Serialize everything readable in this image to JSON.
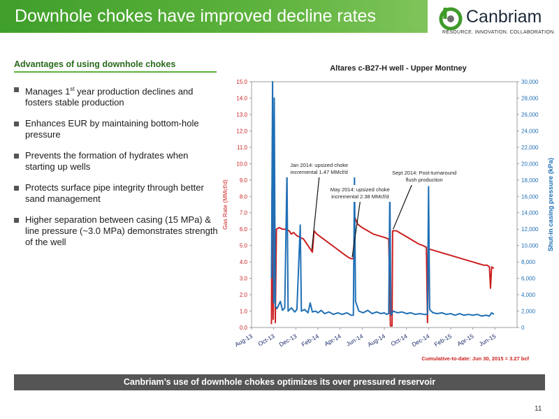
{
  "slide": {
    "title": "Downhole chokes have improved decline rates",
    "logo_name": "Canbriam",
    "logo_tagline": "RESOURCE. INNOVATION. COLLABORATION.",
    "section_heading": "Advantages of using downhole chokes",
    "bullets": [
      {
        "pre": "Manages 1",
        "sup": "st",
        "post": " year production declines and fosters stable production"
      },
      {
        "pre": "Enhances EUR by maintaining bottom-hole pressure",
        "sup": "",
        "post": ""
      },
      {
        "pre": "Prevents the formation of hydrates when starting up wells",
        "sup": "",
        "post": ""
      },
      {
        "pre": "Protects surface pipe integrity through better sand management",
        "sup": "",
        "post": ""
      },
      {
        "pre": "Higher separation between casing (15 MPa) & line pressure (~3.0 MPa)  demonstrates strength of the well",
        "sup": "",
        "post": ""
      }
    ],
    "banner": "Canbriam’s use of downhole chokes optimizes its over pressured reservoir",
    "page_number": "11"
  },
  "colors": {
    "title_bar": "#4aa832",
    "heading": "#2a6a1c",
    "gas": "#cc1f1f",
    "pressure": "#1f6fb5",
    "banner": "#555555"
  },
  "chart_data": {
    "type": "line",
    "title": "Altares c-B27-H well - Upper Montney",
    "ylabel": "Gas Rate (MMcf/d)",
    "y2label": "Shut-in casing pressure (kPa)",
    "ylim": [
      0,
      15
    ],
    "y2lim": [
      0,
      30000
    ],
    "yticks": [
      "0.0",
      "1.0",
      "2.0",
      "3.0",
      "4.0",
      "5.0",
      "6.0",
      "7.0",
      "8.0",
      "9.0",
      "10.0",
      "11.0",
      "12.0",
      "13.0",
      "14.0",
      "15.0"
    ],
    "y2ticks": [
      "0",
      "2,000",
      "4,000",
      "6,000",
      "8,000",
      "10,000",
      "12,000",
      "14,000",
      "16,000",
      "18,000",
      "20,000",
      "22,000",
      "24,000",
      "26,000",
      "28,000",
      "30,000"
    ],
    "xticks": [
      "Aug-13",
      "Oct-13",
      "Dec-13",
      "Feb-14",
      "Apr-14",
      "Jun-14",
      "Aug-14",
      "Oct-14",
      "Dec-14",
      "Feb-15",
      "Apr-15",
      "Jun-15"
    ],
    "xrange_months": [
      0,
      24
    ],
    "series": [
      {
        "name": "Gas rate",
        "axis": "left",
        "points": [
          [
            1.8,
            0.2
          ],
          [
            1.85,
            8.5
          ],
          [
            1.95,
            0.5
          ],
          [
            2.05,
            9.0
          ],
          [
            2.15,
            0.3
          ],
          [
            2.25,
            6.0
          ],
          [
            2.5,
            6.1
          ],
          [
            2.8,
            6.0
          ],
          [
            3.1,
            6.0
          ],
          [
            3.4,
            5.9
          ],
          [
            3.6,
            5.7
          ],
          [
            3.8,
            5.8
          ],
          [
            4.1,
            5.6
          ],
          [
            4.4,
            5.5
          ],
          [
            4.7,
            5.4
          ],
          [
            4.9,
            5.2
          ],
          [
            5.1,
            5.0
          ],
          [
            5.3,
            4.8
          ],
          [
            5.5,
            4.6
          ],
          [
            5.65,
            5.9
          ],
          [
            5.9,
            5.7
          ],
          [
            6.3,
            5.5
          ],
          [
            6.7,
            5.3
          ],
          [
            7.1,
            5.1
          ],
          [
            7.5,
            4.9
          ],
          [
            7.9,
            4.7
          ],
          [
            8.3,
            4.5
          ],
          [
            8.7,
            4.3
          ],
          [
            9.0,
            4.2
          ],
          [
            9.2,
            4.2
          ],
          [
            9.35,
            6.7
          ],
          [
            9.6,
            6.3
          ],
          [
            10.0,
            6.1
          ],
          [
            10.5,
            5.9
          ],
          [
            11.0,
            5.7
          ],
          [
            11.5,
            5.6
          ],
          [
            12.0,
            5.5
          ],
          [
            12.4,
            5.4
          ],
          [
            12.55,
            0.1
          ],
          [
            12.7,
            0.1
          ],
          [
            12.75,
            5.9
          ],
          [
            13.1,
            5.9
          ],
          [
            13.6,
            5.7
          ],
          [
            14.1,
            5.5
          ],
          [
            14.6,
            5.3
          ],
          [
            15.1,
            5.1
          ],
          [
            15.5,
            5.0
          ],
          [
            15.8,
            4.9
          ],
          [
            15.9,
            0.3
          ],
          [
            16.0,
            4.8
          ],
          [
            16.5,
            4.7
          ],
          [
            17.0,
            4.6
          ],
          [
            17.5,
            4.5
          ],
          [
            18.0,
            4.4
          ],
          [
            18.5,
            4.3
          ],
          [
            19.0,
            4.2
          ],
          [
            19.5,
            4.1
          ],
          [
            20.0,
            4.0
          ],
          [
            20.5,
            3.9
          ],
          [
            21.0,
            3.8
          ],
          [
            21.3,
            3.8
          ],
          [
            21.5,
            3.7
          ],
          [
            21.6,
            2.4
          ],
          [
            21.7,
            3.7
          ],
          [
            21.9,
            3.6
          ]
        ]
      },
      {
        "name": "Shut-in casing pressure",
        "axis": "right",
        "points": [
          [
            1.8,
            6000
          ],
          [
            1.9,
            30000
          ],
          [
            2.0,
            3000
          ],
          [
            2.05,
            28000
          ],
          [
            2.15,
            2600
          ],
          [
            2.3,
            2300
          ],
          [
            2.6,
            3200
          ],
          [
            2.8,
            2100
          ],
          [
            3.0,
            2400
          ],
          [
            3.2,
            19000
          ],
          [
            3.3,
            2000
          ],
          [
            3.6,
            2400
          ],
          [
            3.9,
            1900
          ],
          [
            4.1,
            2200
          ],
          [
            4.4,
            12500
          ],
          [
            4.5,
            2000
          ],
          [
            4.8,
            2200
          ],
          [
            5.1,
            1800
          ],
          [
            5.3,
            3000
          ],
          [
            5.5,
            1900
          ],
          [
            5.8,
            2000
          ],
          [
            6.0,
            1800
          ],
          [
            6.3,
            2100
          ],
          [
            6.6,
            1700
          ],
          [
            7.0,
            1900
          ],
          [
            7.4,
            1600
          ],
          [
            7.8,
            1800
          ],
          [
            8.2,
            1600
          ],
          [
            8.6,
            1800
          ],
          [
            9.0,
            1500
          ],
          [
            9.2,
            1500
          ],
          [
            9.3,
            18500
          ],
          [
            9.4,
            3200
          ],
          [
            9.7,
            2000
          ],
          [
            10.1,
            1800
          ],
          [
            10.5,
            2100
          ],
          [
            10.9,
            1700
          ],
          [
            11.3,
            1900
          ],
          [
            11.7,
            1700
          ],
          [
            12.0,
            1800
          ],
          [
            12.2,
            1600
          ],
          [
            12.4,
            1700
          ],
          [
            12.5,
            17000
          ],
          [
            12.6,
            1500
          ],
          [
            12.8,
            2000
          ],
          [
            13.2,
            1800
          ],
          [
            13.6,
            1900
          ],
          [
            14.0,
            1700
          ],
          [
            14.4,
            1800
          ],
          [
            14.8,
            1600
          ],
          [
            15.2,
            1700
          ],
          [
            15.6,
            1600
          ],
          [
            15.9,
            1600
          ],
          [
            16.0,
            17200
          ],
          [
            16.1,
            2200
          ],
          [
            16.4,
            1800
          ],
          [
            16.8,
            1700
          ],
          [
            17.2,
            1800
          ],
          [
            17.6,
            1600
          ],
          [
            18.0,
            1700
          ],
          [
            18.4,
            1500
          ],
          [
            18.8,
            1700
          ],
          [
            19.2,
            1500
          ],
          [
            19.6,
            1600
          ],
          [
            20.0,
            1500
          ],
          [
            20.4,
            1600
          ],
          [
            20.8,
            1400
          ],
          [
            21.2,
            1500
          ],
          [
            21.5,
            1400
          ],
          [
            21.7,
            1800
          ],
          [
            21.9,
            1600
          ]
        ]
      }
    ],
    "annotations": [
      {
        "text": "Jan 2014:  upsized choke",
        "text2": "incremental 1.47 MMcf/d"
      },
      {
        "text": "May 2014:  upsized choke",
        "text2": "incremental 2.38 MMcf/d"
      },
      {
        "text": "Sept 2014:  Post-turnaround",
        "text2": "flush production"
      }
    ],
    "footnote": "Cumulative-to-date: Jun 30, 2015 = 3.27 bcf"
  }
}
